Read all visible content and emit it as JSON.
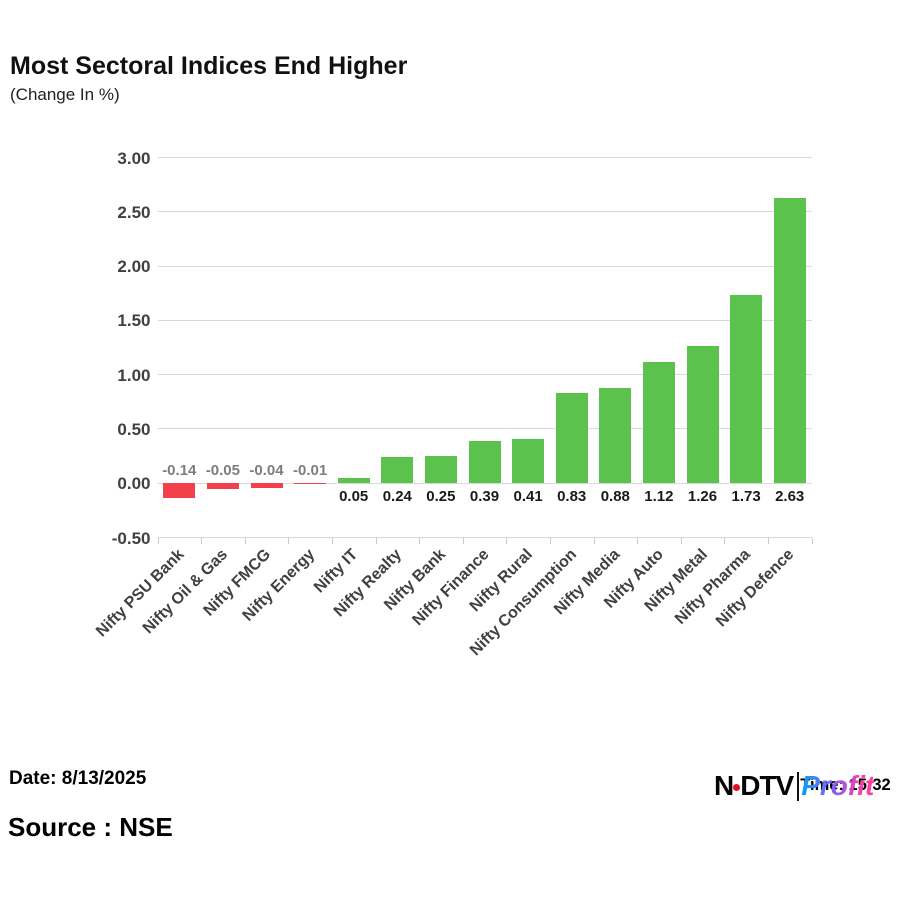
{
  "title": "Most Sectoral Indices End Higher",
  "subtitle": "(Change In %)",
  "footer": {
    "date_label": "Date: 8/13/2025",
    "source_label": "Source : NSE"
  },
  "logo": {
    "ndtv_n": "N",
    "ndtv_dtv": "DTV",
    "profit": "Profit",
    "timestamp": "Time: 15:32"
  },
  "chart_data": {
    "type": "bar",
    "categories": [
      "Nifty PSU Bank",
      "Nifty Oil & Gas",
      "Nifty FMCG",
      "Nifty Energy",
      "Nifty IT",
      "Nifty Realty",
      "Nifty Bank",
      "Nifty Finance",
      "Nifty Rural",
      "Nifty Consumption",
      "Nifty Media",
      "Nifty Auto",
      "Nifty Metal",
      "Nifty Pharma",
      "Nifty Defence"
    ],
    "values": [
      -0.14,
      -0.05,
      -0.04,
      -0.01,
      0.05,
      0.24,
      0.25,
      0.39,
      0.41,
      0.83,
      0.88,
      1.12,
      1.26,
      1.73,
      2.63
    ],
    "value_labels": [
      "-0.14",
      "-0.05",
      "-0.04",
      "-0.01",
      "0.05",
      "0.24",
      "0.25",
      "0.39",
      "0.41",
      "0.83",
      "0.88",
      "1.12",
      "1.26",
      "1.73",
      "2.63"
    ],
    "title": "Most Sectoral Indices End Higher",
    "subtitle": "(Change In %)",
    "xlabel": "",
    "ylabel": "",
    "ylim": [
      -0.5,
      3.0
    ],
    "ytick_step": 0.5,
    "yticks": [
      "3.00",
      "2.50",
      "2.00",
      "1.50",
      "1.00",
      "0.50",
      "0.00",
      "-0.50"
    ],
    "grid": true,
    "legend": false,
    "colors": {
      "positive": "#5CC24E",
      "negative": "#F2414B",
      "gridline": "#D9D9D9",
      "axis_text": "#404040",
      "negative_label": "#7d7d7d",
      "positive_label": "#1a1a1a"
    }
  }
}
